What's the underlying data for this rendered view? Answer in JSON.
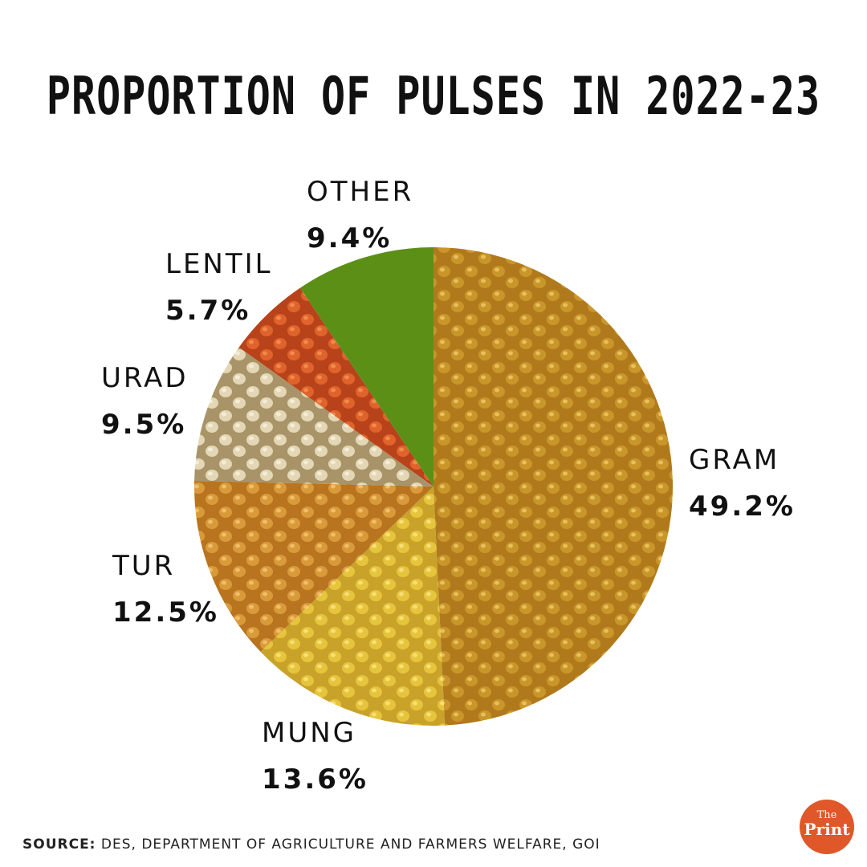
{
  "chart_data": {
    "type": "pie",
    "title": "PROPORTION OF PULSES IN 2022-23",
    "slices": [
      {
        "label": "GRAM",
        "pct_label": "49.2%",
        "value": 49.2,
        "colors": [
          "#c9962a",
          "#e8bf5c",
          "#b07a1c"
        ]
      },
      {
        "label": "MUNG",
        "pct_label": "13.6%",
        "value": 13.6,
        "colors": [
          "#e6c43c",
          "#f6df79",
          "#c9a22a"
        ]
      },
      {
        "label": "TUR",
        "pct_label": "12.5%",
        "value": 12.5,
        "colors": [
          "#d99a3a",
          "#f0bd6a",
          "#b8741e"
        ]
      },
      {
        "label": "URAD",
        "pct_label": "9.5%",
        "value": 9.5,
        "colors": [
          "#e3d7b6",
          "#f4ecd6",
          "#a89468"
        ]
      },
      {
        "label": "LENTIL",
        "pct_label": "5.7%",
        "value": 5.7,
        "colors": [
          "#e0632c",
          "#f08a4d",
          "#b8431a"
        ]
      },
      {
        "label": "OTHER",
        "pct_label": "9.4%",
        "value": 9.4,
        "colors": [
          "#5c8f16",
          "#5c8f16",
          "#5c8f16"
        ]
      }
    ]
  },
  "source": {
    "label": "SOURCE:",
    "text": "DES, DEPARTMENT OF AGRICULTURE AND FARMERS WELFARE, GOI"
  },
  "logo": {
    "line1": "The",
    "line2": "Print",
    "color": "#e0572a"
  }
}
